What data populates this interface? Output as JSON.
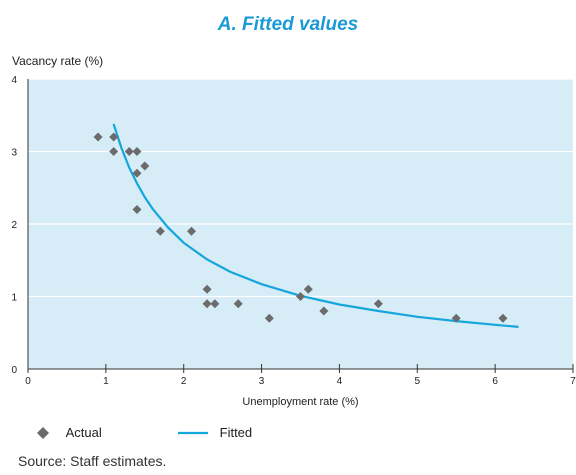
{
  "chart_data": {
    "type": "scatter",
    "title": "A. Fitted values",
    "xlabel": "Unemployment rate (%)",
    "ylabel": "Vacancy rate (%)",
    "xlim": [
      0,
      7
    ],
    "ylim": [
      0,
      4
    ],
    "xticks": [
      "0",
      "1",
      "2",
      "3",
      "4",
      "5",
      "6",
      "7"
    ],
    "yticks": [
      "0",
      "1",
      "2",
      "3",
      "4"
    ],
    "grid": "horizontal",
    "legend_position": "bottom-left",
    "colors": {
      "plot_background": "#d6ecf7",
      "actual": "#6b6b6b",
      "fitted": "#14a6dc",
      "title": "#1a9ad6"
    },
    "series": [
      {
        "name": "Actual",
        "kind": "scatter",
        "marker": "diamond",
        "x": [
          0.9,
          1.1,
          1.1,
          1.3,
          1.4,
          1.4,
          1.5,
          1.4,
          1.7,
          2.1,
          2.3,
          2.3,
          2.4,
          2.7,
          3.1,
          3.5,
          3.6,
          3.8,
          4.5,
          5.5,
          6.1
        ],
        "y": [
          3.2,
          3.2,
          3.0,
          3.0,
          3.0,
          2.7,
          2.8,
          2.2,
          1.9,
          1.9,
          1.1,
          0.9,
          0.9,
          0.9,
          0.7,
          1.0,
          1.1,
          0.8,
          0.9,
          0.7,
          0.7
        ]
      },
      {
        "name": "Fitted",
        "kind": "line",
        "x": [
          1.1,
          1.2,
          1.3,
          1.4,
          1.5,
          1.6,
          1.8,
          2.0,
          2.3,
          2.6,
          3.0,
          3.5,
          4.0,
          4.5,
          5.0,
          5.5,
          6.0,
          6.3
        ],
        "y": [
          3.38,
          3.05,
          2.78,
          2.56,
          2.37,
          2.21,
          1.95,
          1.74,
          1.51,
          1.34,
          1.17,
          1.01,
          0.89,
          0.8,
          0.72,
          0.66,
          0.61,
          0.58
        ]
      }
    ]
  },
  "source": "Source: Staff estimates."
}
